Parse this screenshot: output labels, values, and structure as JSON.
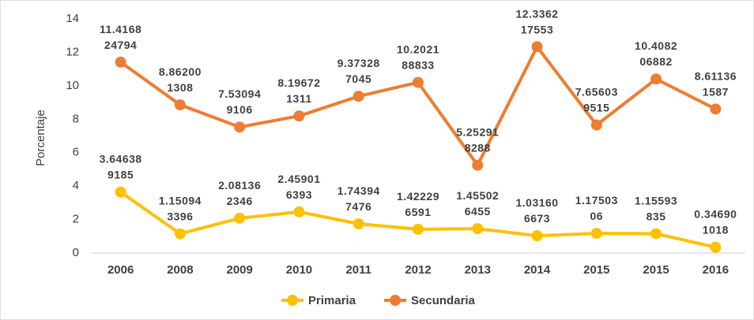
{
  "chart_data": {
    "type": "line",
    "y_label": "Porcentaje",
    "categories": [
      "2006",
      "2008",
      "2009",
      "2010",
      "2011",
      "2012",
      "2013",
      "2014",
      "2015",
      "2015",
      "2016"
    ],
    "series": [
      {
        "name": "Primaria",
        "color": "#ffc000",
        "values": [
          3.646389185,
          1.150943396,
          2.081362346,
          2.459016393,
          1.743947476,
          1.422296591,
          1.455026455,
          1.031606673,
          1.1750306,
          1.15593835,
          0.346901018
        ]
      },
      {
        "name": "Secundaria",
        "color": "#ed7d31",
        "values": [
          11.416824794,
          8.862001308,
          7.530949106,
          8.196721311,
          9.373287045,
          10.202188833,
          5.252918288,
          12.336217553,
          7.656039515,
          10.408206882,
          8.611361587
        ]
      }
    ],
    "ylim": [
      0,
      14
    ],
    "yticks": [
      0,
      2,
      4,
      6,
      8,
      10,
      12,
      14
    ],
    "grid": false,
    "legend": "bottom"
  }
}
